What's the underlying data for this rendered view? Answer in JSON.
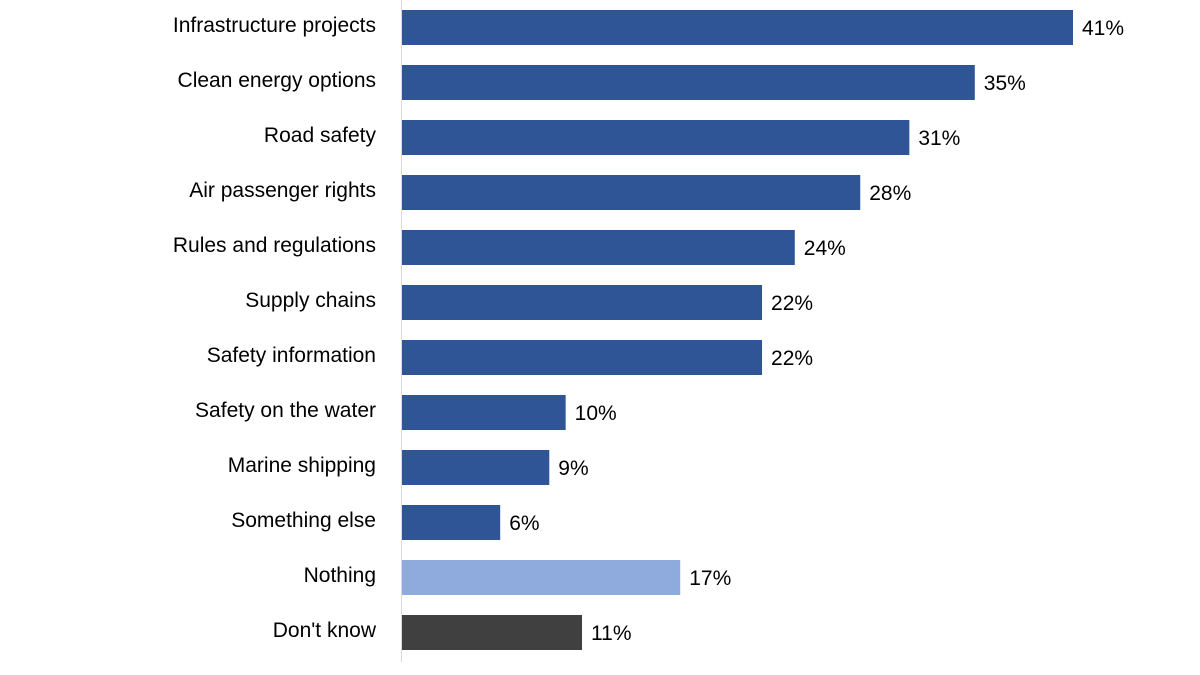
{
  "chart_data": {
    "type": "hbar",
    "categories": [
      "Infrastructure projects",
      "Clean energy options",
      "Road safety",
      "Air passenger rights",
      "Rules and regulations",
      "Supply chains",
      "Safety information",
      "Safety on the water",
      "Marine shipping",
      "Something else",
      "Nothing",
      "Don't know"
    ],
    "values": [
      41,
      35,
      31,
      28,
      24,
      22,
      22,
      10,
      9,
      6,
      17,
      11
    ],
    "value_labels": [
      "41%",
      "35%",
      "31%",
      "28%",
      "24%",
      "22%",
      "22%",
      "10%",
      "9%",
      "6%",
      "17%",
      "11%"
    ],
    "colors": [
      "#2f5597",
      "#2f5597",
      "#2f5597",
      "#2f5597",
      "#2f5597",
      "#2f5597",
      "#2f5597",
      "#2f5597",
      "#2f5597",
      "#2f5597",
      "#8faadc",
      "#404040"
    ]
  }
}
